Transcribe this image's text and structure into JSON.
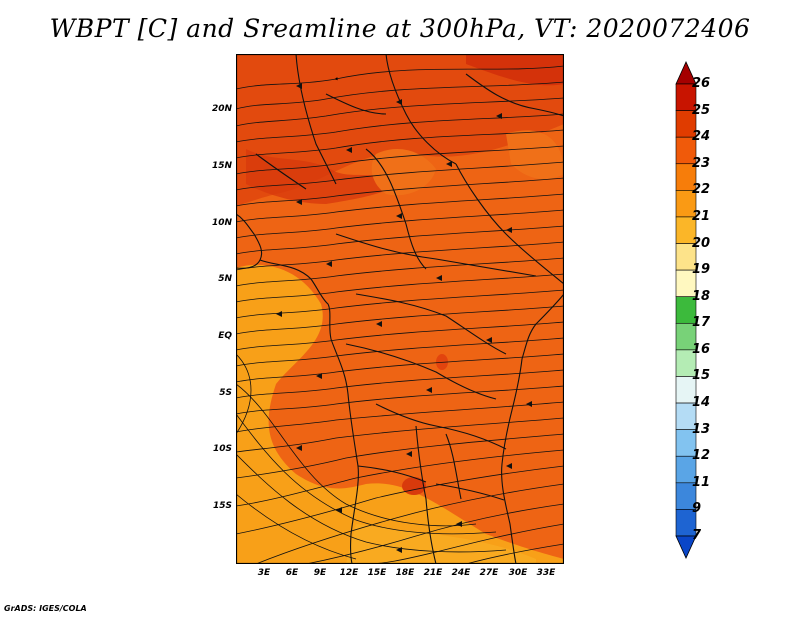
{
  "title": "WBPT [C] and Sreamline at 300hPa, VT: 2020072406",
  "credit": "GrADS: IGES/COLA",
  "lat_labels": [
    "20N",
    "15N",
    "10N",
    "5N",
    "EQ",
    "5S",
    "10S",
    "15S"
  ],
  "lon_labels": [
    "3E",
    "6E",
    "9E",
    "12E",
    "15E",
    "18E",
    "21E",
    "24E",
    "27E",
    "30E",
    "33E"
  ],
  "colorbar": {
    "levels": [
      "26",
      "25",
      "24",
      "23",
      "22",
      "21",
      "20",
      "19",
      "18",
      "17",
      "16",
      "15",
      "14",
      "13",
      "12",
      "11",
      "9",
      "7"
    ],
    "colors": [
      "#a50000",
      "#c81400",
      "#e03c00",
      "#f05a0a",
      "#f77d0a",
      "#fa9a14",
      "#fbb628",
      "#fde38a",
      "#fff8c0",
      "#3cba3c",
      "#78d278",
      "#b4ecb4",
      "#e6f5f5",
      "#b4dcf5",
      "#82c3f0",
      "#5aa5e6",
      "#3c87dc",
      "#1e64d2",
      "#0a46c8"
    ]
  },
  "palette": {
    "warm_core": "#e0400e",
    "orange_main": "#ee6414",
    "orange_light": "#f27818",
    "amber_sw": "#fa9a14",
    "coast": "#111111"
  }
}
